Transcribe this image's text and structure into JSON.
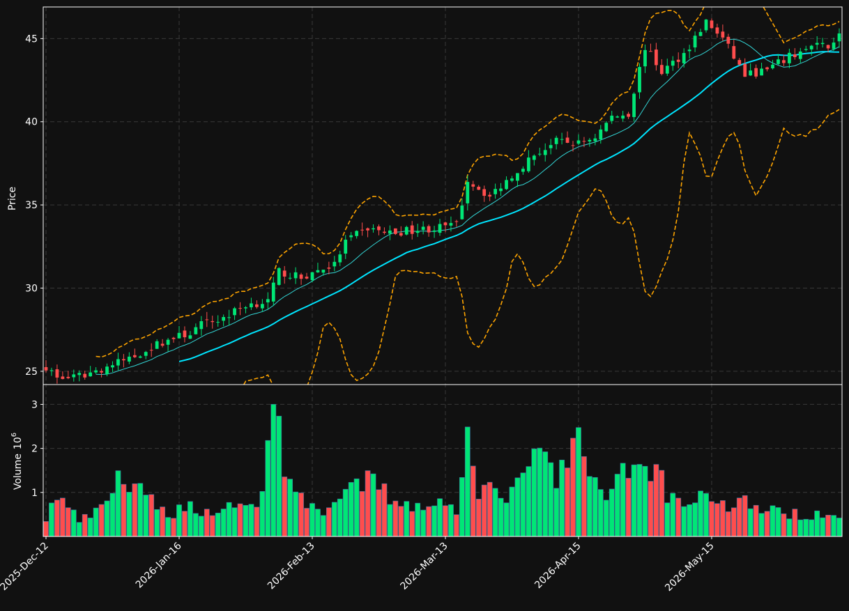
{
  "colors": {
    "background": "#111111",
    "up": "#00e676",
    "down": "#ff4d4d",
    "ma_fast": "#33d6d6",
    "ma_slow": "#00e5ff",
    "band": "#ffa500",
    "grid": "#3a3a3a",
    "axis": "#ffffff",
    "text": "#ffffff"
  },
  "chart_data": {
    "type": "candlestick",
    "x_tick_labels": [
      "2025-Dec-12",
      "2026-Jan-16",
      "2026-Feb-13",
      "2026-Mar-13",
      "2026-Apr-15",
      "2026-May-15"
    ],
    "x_tick_indices": [
      0,
      24,
      48,
      72,
      96,
      120
    ],
    "bars": 144,
    "price_panel": {
      "ylabel": "Price",
      "yticks": [
        25,
        30,
        35,
        40,
        45
      ],
      "ylim": [
        24.2,
        46.9
      ],
      "grid": true
    },
    "volume_panel": {
      "ylabel": "Volume",
      "ylabel_exponent": "10",
      "ylabel_exponent_power": "6",
      "yticks": [
        1,
        2,
        3
      ],
      "ylim": [
        0,
        3.45
      ],
      "grid": true
    },
    "overlays": [
      "fast moving average",
      "slow moving average",
      "upper band",
      "lower band"
    ],
    "close_anchors": [
      [
        0,
        25.3
      ],
      [
        2,
        24.6
      ],
      [
        5,
        24.6
      ],
      [
        8,
        24.9
      ],
      [
        12,
        25.4
      ],
      [
        16,
        25.9
      ],
      [
        18,
        26.3
      ],
      [
        22,
        26.9
      ],
      [
        26,
        27.3
      ],
      [
        28,
        27.8
      ],
      [
        32,
        28.2
      ],
      [
        36,
        29.0
      ],
      [
        40,
        29.2
      ],
      [
        42,
        31.0
      ],
      [
        46,
        30.6
      ],
      [
        50,
        31.2
      ],
      [
        52,
        31.4
      ],
      [
        54,
        32.8
      ],
      [
        58,
        33.6
      ],
      [
        62,
        33.3
      ],
      [
        66,
        33.5
      ],
      [
        70,
        33.6
      ],
      [
        74,
        33.8
      ],
      [
        76,
        36.5
      ],
      [
        80,
        35.5
      ],
      [
        84,
        36.8
      ],
      [
        88,
        38.0
      ],
      [
        92,
        38.8
      ],
      [
        96,
        38.7
      ],
      [
        99,
        39.1
      ],
      [
        102,
        40.3
      ],
      [
        105,
        40.5
      ],
      [
        108,
        44.5
      ],
      [
        111,
        43.0
      ],
      [
        115,
        44.1
      ],
      [
        119,
        46.0
      ],
      [
        122,
        45.0
      ],
      [
        126,
        42.8
      ],
      [
        130,
        43.1
      ],
      [
        134,
        43.9
      ],
      [
        138,
        44.5
      ],
      [
        141,
        44.6
      ],
      [
        143,
        45.2
      ]
    ],
    "volume_anchors": [
      [
        0,
        0.4
      ],
      [
        2,
        0.95
      ],
      [
        6,
        0.35
      ],
      [
        10,
        0.6
      ],
      [
        13,
        1.4
      ],
      [
        15,
        1.1
      ],
      [
        18,
        0.9
      ],
      [
        22,
        0.5
      ],
      [
        26,
        0.7
      ],
      [
        30,
        0.5
      ],
      [
        34,
        0.8
      ],
      [
        38,
        0.6
      ],
      [
        42,
        3.4
      ],
      [
        43,
        1.6
      ],
      [
        46,
        0.8
      ],
      [
        50,
        0.6
      ],
      [
        54,
        0.9
      ],
      [
        58,
        1.3
      ],
      [
        62,
        0.9
      ],
      [
        66,
        0.7
      ],
      [
        70,
        0.8
      ],
      [
        74,
        0.6
      ],
      [
        76,
        2.8
      ],
      [
        78,
        1.1
      ],
      [
        82,
        0.9
      ],
      [
        86,
        1.2
      ],
      [
        89,
        2.05
      ],
      [
        92,
        1.2
      ],
      [
        96,
        2.4
      ],
      [
        98,
        1.2
      ],
      [
        101,
        0.9
      ],
      [
        104,
        1.7
      ],
      [
        107,
        1.5
      ],
      [
        110,
        1.6
      ],
      [
        112,
        1.0
      ],
      [
        115,
        0.7
      ],
      [
        118,
        1.0
      ],
      [
        122,
        0.7
      ],
      [
        126,
        0.8
      ],
      [
        130,
        0.6
      ],
      [
        134,
        0.5
      ],
      [
        138,
        0.5
      ],
      [
        141,
        0.6
      ],
      [
        143,
        0.5
      ]
    ]
  }
}
